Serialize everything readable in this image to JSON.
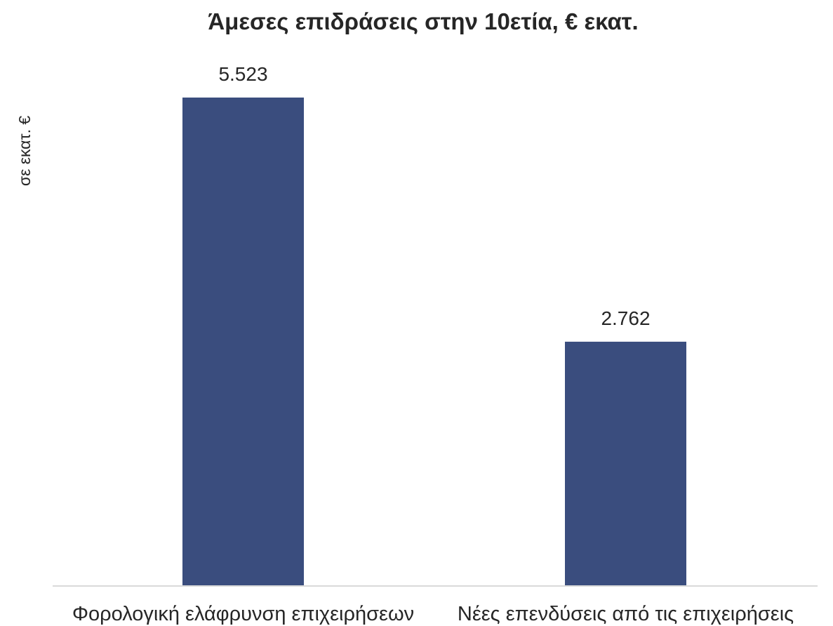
{
  "chart_data": {
    "type": "bar",
    "title": "Άμεσες επιδράσεις στην 10ετία, € εκατ.",
    "xlabel": "",
    "ylabel": "σε εκατ. €",
    "categories": [
      "Φορολογική ελάφρυνση επιχειρήσεων",
      "Νέες επενδύσεις από τις επιχειρήσεις"
    ],
    "values": [
      5523,
      2762
    ],
    "value_labels": [
      "5.523",
      "2.762"
    ],
    "ylim": [
      0,
      6000
    ],
    "grid": false,
    "legend": "none",
    "colors": {
      "bar": "#3a4d7e",
      "axis": "#d9d9d9",
      "text": "#262626"
    }
  }
}
